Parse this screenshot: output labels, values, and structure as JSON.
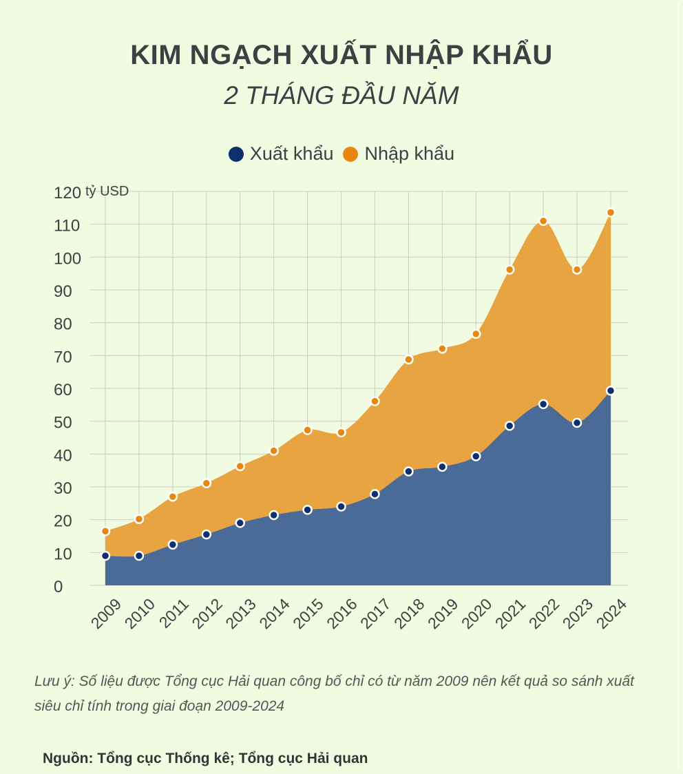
{
  "title": "KIM NGẠCH XUẤT NHẬP KHẨU",
  "subtitle": "2 THÁNG ĐẦU NĂM",
  "note": "Lưu ý: Số liệu được Tổng cục Hải quan công bố chỉ có từ năm 2009 nên kết quả so sánh xuất siêu chỉ tính trong giai đoạn 2009-2024",
  "source": "Nguồn: Tổng cục Thống kê; Tổng cục Hải quan",
  "colors": {
    "export": "#4a6b98",
    "export_dot": "#0d2f6e",
    "import": "#e8a440",
    "import_dot": "#e8870e",
    "grid": "#c9cec0",
    "background": "#f1fbe1"
  },
  "chart_data": {
    "type": "area",
    "stacked": true,
    "ylabel": "tỷ USD",
    "ylim": [
      0,
      120
    ],
    "yticks": [
      0,
      10,
      20,
      30,
      40,
      50,
      60,
      70,
      80,
      90,
      100,
      110,
      120
    ],
    "grid": true,
    "legend_position": "top-center",
    "categories": [
      "2009",
      "2010",
      "2011",
      "2012",
      "2013",
      "2014",
      "2015",
      "2016",
      "2017",
      "2018",
      "2019",
      "2020",
      "2021",
      "2022",
      "2023",
      "2024"
    ],
    "series": [
      {
        "name": "Xuất khẩu",
        "values": [
          9,
          9,
          12.4,
          15.5,
          19,
          21.4,
          23,
          24,
          27.8,
          34.7,
          36.1,
          39.3,
          48.6,
          55.2,
          49.5,
          59.3
        ]
      },
      {
        "name": "Nhập khẩu",
        "values": [
          7.5,
          11.2,
          14.6,
          15.6,
          17.3,
          19.6,
          24.3,
          22.6,
          28.3,
          34.1,
          36,
          37.3,
          47.6,
          55.8,
          46.7,
          54.3
        ]
      }
    ]
  }
}
